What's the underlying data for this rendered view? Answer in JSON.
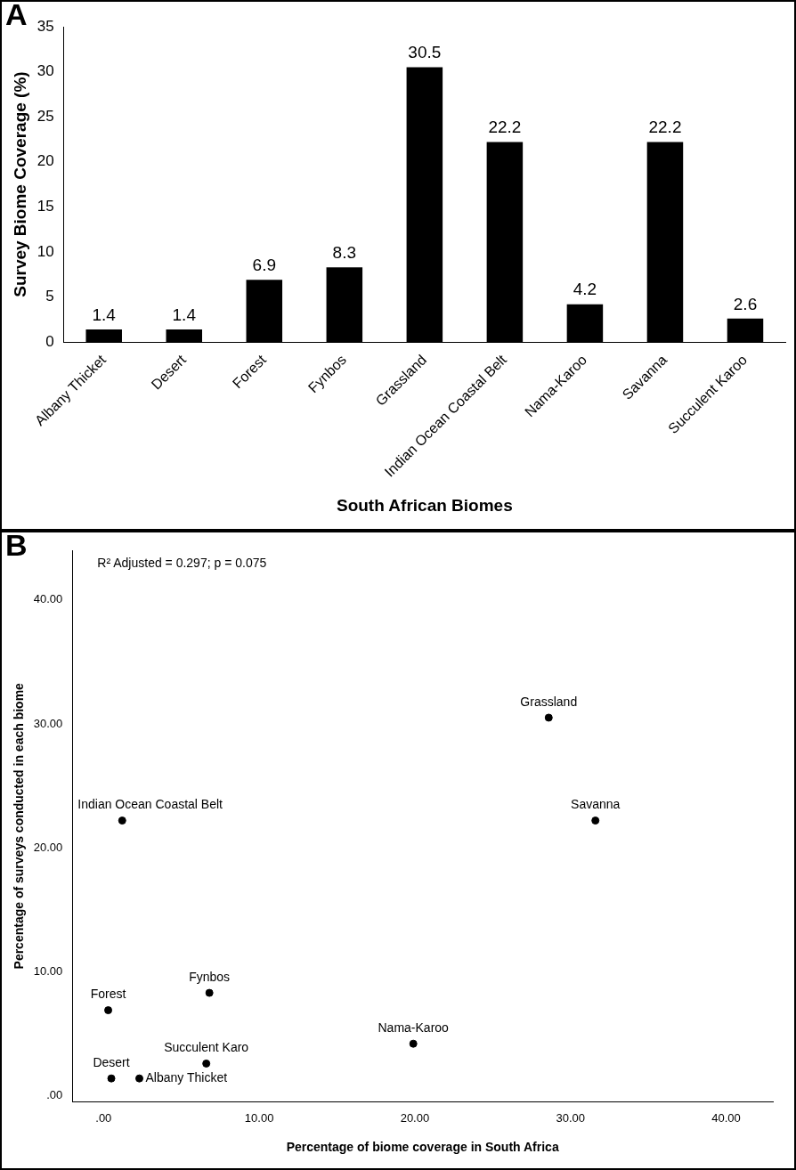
{
  "chart_data": [
    {
      "type": "bar",
      "title": "A",
      "xlabel": "South African Biomes",
      "ylabel": "Survey Biome Coverage (%)",
      "categories": [
        "Albany Thicket",
        "Desert",
        "Forest",
        "Fynbos",
        "Grassland",
        "Indian Ocean Coastal Belt",
        "Nama-Karoo",
        "Savanna",
        "Succulent Karoo"
      ],
      "values": [
        1.4,
        1.4,
        6.9,
        8.3,
        30.5,
        22.2,
        4.2,
        22.2,
        2.6
      ],
      "color": "#000000",
      "ylim": [
        0,
        35
      ],
      "yticks": [
        0,
        5,
        10,
        15,
        20,
        25,
        30,
        35
      ],
      "grid": false,
      "legend": false,
      "data_labels": true
    },
    {
      "type": "scatter",
      "title": "B",
      "xlabel": "Percentage of biome coverage in South Africa",
      "ylabel": "Percentage of surveys conducted in each biome",
      "x": [
        2.3,
        0.5,
        0.3,
        6.8,
        28.6,
        1.2,
        19.9,
        31.6,
        6.6
      ],
      "values": [
        1.4,
        1.4,
        6.9,
        8.3,
        30.5,
        22.2,
        4.2,
        22.2,
        2.6
      ],
      "color": "#000000",
      "marker": "circle",
      "xlim": [
        -2,
        43
      ],
      "ylim": [
        -0.5,
        44
      ],
      "xticks": [
        {
          "value": 0,
          "label": ".00"
        },
        {
          "value": 10,
          "label": "10.00"
        },
        {
          "value": 20,
          "label": "20.00"
        },
        {
          "value": 30,
          "label": "30.00"
        },
        {
          "value": 40,
          "label": "40.00"
        }
      ],
      "yticks": [
        {
          "value": 0,
          "label": ".00"
        },
        {
          "value": 10,
          "label": "10.00"
        },
        {
          "value": 20,
          "label": "20.00"
        },
        {
          "value": 30,
          "label": "30.00"
        },
        {
          "value": 40,
          "label": "40.00"
        }
      ],
      "grid": false,
      "legend": false,
      "annotations": [
        "R² Adjusted = 0.297; p = 0.075",
        {
          "text": "Albany Thicket",
          "x": 2.3,
          "y": 1.4
        },
        {
          "text": "Desert",
          "x": 0.5,
          "y": 1.4
        },
        {
          "text": "Forest",
          "x": 0.3,
          "y": 6.9
        },
        {
          "text": "Fynbos",
          "x": 6.8,
          "y": 8.3
        },
        {
          "text": "Grassland",
          "x": 28.6,
          "y": 30.5
        },
        {
          "text": "Indian Ocean Coastal Belt",
          "x": 1.2,
          "y": 22.2
        },
        {
          "text": "Nama-Karoo",
          "x": 19.9,
          "y": 4.2
        },
        {
          "text": "Savanna",
          "x": 31.6,
          "y": 22.2
        },
        {
          "text": "Succulent Karo",
          "x": 6.6,
          "y": 2.6
        }
      ]
    }
  ]
}
